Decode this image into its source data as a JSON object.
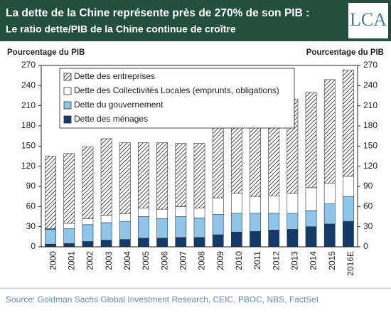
{
  "chart_data": {
    "type": "bar",
    "title": "La dette de la Chine représente près de 270% de son PIB :",
    "subtitle": "Le ratio dette/PIB de la Chine continue de croître",
    "logo": "LCA",
    "ylabel": "Pourcentage du PIB",
    "y2label": "Pourcentage du PIB",
    "source": "Source: Goldman Sachs Global Investment Research, CEIC, PBOC, NBS, FactSet",
    "categories": [
      "2000",
      "2001",
      "2002",
      "2003",
      "2004",
      "2005",
      "2006",
      "2007",
      "2008",
      "2009",
      "2010",
      "2011",
      "2012",
      "2013",
      "2014",
      "2015",
      "2016E"
    ],
    "stacked": true,
    "legend": "top-left",
    "series": [
      {
        "name": "Dette des entreprises",
        "color": "#222222",
        "hatch": true,
        "values": [
          108,
          104,
          107,
          114,
          106,
          97,
          99,
          94,
          96,
          109,
          117,
          120,
          134,
          140,
          142,
          154,
          158
        ]
      },
      {
        "name": "Dette des Collectivités Locales (emprunts, obligations)",
        "color": "#ffffff",
        "values": [
          1,
          8,
          9,
          11,
          11,
          13,
          14,
          15,
          15,
          25,
          30,
          25,
          26,
          30,
          34,
          31,
          30
        ]
      },
      {
        "name": "Dette du gouvernement",
        "color": "#8ec5ea",
        "values": [
          22,
          22,
          25,
          26,
          27,
          32,
          29,
          31,
          29,
          30,
          28,
          27,
          25,
          24,
          24,
          30,
          37
        ]
      },
      {
        "name": "Dette des ménages",
        "color": "#123a6b",
        "values": [
          4,
          5,
          8,
          10,
          11,
          13,
          13,
          14,
          14,
          18,
          22,
          23,
          25,
          26,
          30,
          34,
          38
        ]
      }
    ],
    "ylim": [
      0,
      270
    ],
    "yticks": [
      0,
      30,
      60,
      90,
      120,
      150,
      180,
      210,
      240,
      270
    ],
    "y2lim": [
      0,
      270
    ],
    "y2ticks": [
      0,
      30,
      60,
      90,
      120,
      150,
      180,
      210,
      240,
      270
    ]
  }
}
